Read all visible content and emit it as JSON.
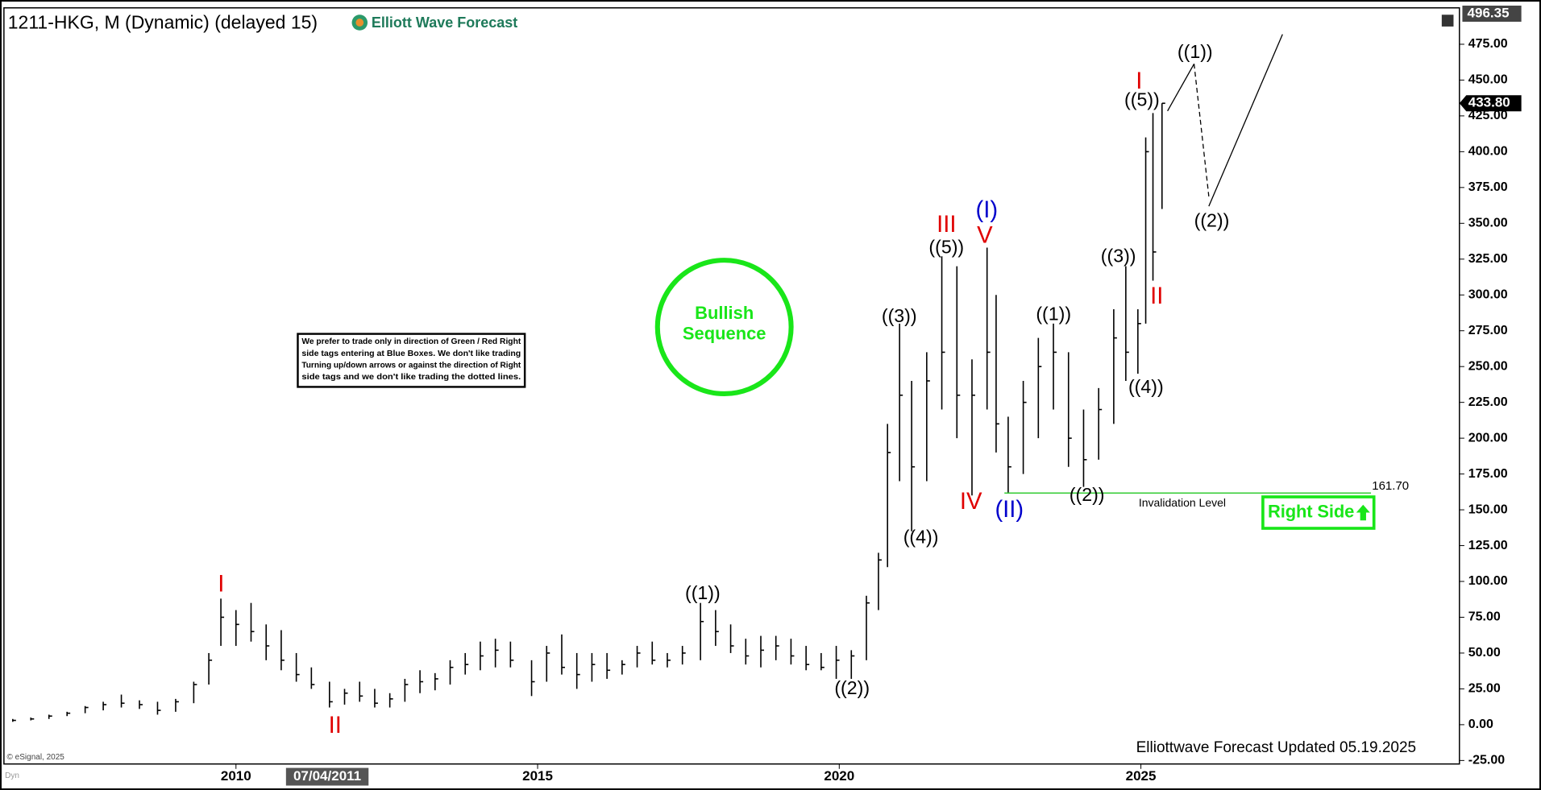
{
  "chart_data": {
    "type": "ohlc",
    "title": "1211-HKG, M (Dynamic) (delayed 15)",
    "brand": "Elliott Wave Forecast",
    "footer": "Elliottwave Forecast Updated 05.19.2025",
    "copyright": "© eSignal, 2025",
    "mode_label": "Dyn",
    "crosshair_date": "07/04/2011",
    "color": "#000000",
    "x": [
      2006.3,
      2006.6,
      2006.9,
      2007.2,
      2007.5,
      2007.8,
      2008.1,
      2008.4,
      2008.7,
      2009.0,
      2009.3,
      2009.55,
      2009.75,
      2010.0,
      2010.25,
      2010.5,
      2010.75,
      2011.0,
      2011.25,
      2011.55,
      2011.8,
      2012.05,
      2012.3,
      2012.55,
      2012.8,
      2013.05,
      2013.3,
      2013.55,
      2013.8,
      2014.05,
      2014.3,
      2014.55,
      2014.9,
      2015.15,
      2015.4,
      2015.65,
      2015.9,
      2016.15,
      2016.4,
      2016.65,
      2016.9,
      2017.15,
      2017.4,
      2017.7,
      2017.95,
      2018.2,
      2018.45,
      2018.7,
      2018.95,
      2019.2,
      2019.45,
      2019.7,
      2019.95,
      2020.2,
      2020.45,
      2020.65,
      2020.8,
      2021.0,
      2021.2,
      2021.45,
      2021.7,
      2021.95,
      2022.2,
      2022.45,
      2022.6,
      2022.8,
      2023.05,
      2023.3,
      2023.55,
      2023.8,
      2024.05,
      2024.3,
      2024.55,
      2024.75,
      2024.95,
      2025.08,
      2025.2,
      2025.35
    ],
    "high": [
      4,
      5,
      7,
      9,
      13,
      16,
      21,
      17,
      16,
      18,
      30,
      50,
      88,
      80,
      85,
      70,
      66,
      50,
      40,
      30,
      25,
      30,
      25,
      22,
      32,
      38,
      36,
      45,
      50,
      58,
      60,
      58,
      45,
      55,
      63,
      50,
      50,
      50,
      45,
      55,
      58,
      50,
      55,
      85,
      80,
      70,
      60,
      62,
      62,
      60,
      55,
      50,
      55,
      52,
      90,
      120,
      210,
      280,
      240,
      260,
      327,
      320,
      255,
      333,
      300,
      215,
      240,
      270,
      280,
      260,
      220,
      235,
      290,
      320,
      290,
      410,
      427,
      433.8
    ],
    "low": [
      2,
      3,
      4,
      6,
      8,
      10,
      12,
      11,
      7,
      9,
      15,
      28,
      55,
      55,
      58,
      45,
      38,
      30,
      25,
      12,
      14,
      16,
      12,
      12,
      16,
      22,
      24,
      28,
      35,
      38,
      40,
      40,
      20,
      30,
      35,
      25,
      30,
      32,
      35,
      40,
      42,
      40,
      42,
      45,
      55,
      50,
      42,
      40,
      45,
      42,
      38,
      38,
      32,
      32,
      45,
      80,
      110,
      170,
      135,
      170,
      220,
      200,
      160,
      220,
      190,
      161.7,
      175,
      200,
      220,
      180,
      166,
      185,
      210,
      240,
      245,
      280,
      310,
      360
    ],
    "close": [
      3,
      4,
      6,
      8,
      12,
      14,
      15,
      14,
      10,
      16,
      28,
      45,
      75,
      70,
      65,
      55,
      45,
      35,
      28,
      16,
      22,
      20,
      15,
      18,
      28,
      30,
      32,
      40,
      42,
      48,
      52,
      45,
      30,
      50,
      40,
      35,
      42,
      38,
      42,
      50,
      45,
      45,
      50,
      72,
      65,
      55,
      48,
      52,
      55,
      48,
      42,
      40,
      45,
      48,
      85,
      115,
      190,
      230,
      180,
      240,
      260,
      230,
      230,
      260,
      210,
      180,
      225,
      250,
      260,
      200,
      185,
      220,
      270,
      260,
      280,
      400,
      330,
      433.8
    ],
    "xlim": [
      2006.17,
      2030.28
    ],
    "xticks": [
      2010,
      2015,
      2020,
      2025
    ],
    "ylim": [
      -27.5,
      500
    ],
    "yticks": [
      {
        "value": -25,
        "label": "-25.00"
      },
      {
        "value": 0,
        "label": "0.00"
      },
      {
        "value": 25,
        "label": "25.00"
      },
      {
        "value": 50,
        "label": "50.00"
      },
      {
        "value": 75,
        "label": "75.00"
      },
      {
        "value": 100,
        "label": "100.00"
      },
      {
        "value": 125,
        "label": "125.00"
      },
      {
        "value": 150,
        "label": "150.00"
      },
      {
        "value": 175,
        "label": "175.00"
      },
      {
        "value": 200,
        "label": "200.00"
      },
      {
        "value": 225,
        "label": "225.00"
      },
      {
        "value": 250,
        "label": "250.00"
      },
      {
        "value": 275,
        "label": "275.00"
      },
      {
        "value": 300,
        "label": "300.00"
      },
      {
        "value": 325,
        "label": "325.00"
      },
      {
        "value": 350,
        "label": "350.00"
      },
      {
        "value": 375,
        "label": "375.00"
      },
      {
        "value": 400,
        "label": "400.00"
      },
      {
        "value": 425,
        "label": "425.00"
      },
      {
        "value": 450,
        "label": "450.00"
      },
      {
        "value": 475,
        "label": "475.00"
      }
    ],
    "top_price": {
      "value": 496.35,
      "label": "496.35"
    },
    "last_price": {
      "value": 433.8,
      "label": "433.80"
    },
    "invalidation": {
      "value": 161.7,
      "label": "161.70",
      "text": "Invalidation Level",
      "color": "#33cc33"
    },
    "sequence": {
      "lines": [
        "Bullish",
        "Sequence"
      ],
      "color": "#19e619"
    },
    "right_side": {
      "text": "Right Side",
      "color": "#19e619"
    },
    "note": [
      "We prefer to trade only in direction of Green / Red Right",
      "side tags entering at Blue Boxes. We don't like trading",
      "Turning up/down arrows or against the direction of Right",
      "side tags and we don't like trading the dotted lines."
    ],
    "annotations": [
      {
        "text": "I",
        "color": "#e00000"
      },
      {
        "text": "II",
        "color": "#e00000"
      },
      {
        "text": "((1))",
        "color": "#000000"
      },
      {
        "text": "((2))",
        "color": "#000000"
      },
      {
        "text": "((3))",
        "color": "#000000"
      },
      {
        "text": "((4))",
        "color": "#000000"
      },
      {
        "text": "((5))",
        "color": "#000000"
      },
      {
        "text": "III",
        "color": "#e00000"
      },
      {
        "text": "IV",
        "color": "#e00000"
      },
      {
        "text": "V",
        "color": "#e00000"
      },
      {
        "text": "(I)",
        "color": "#0000cc"
      },
      {
        "text": "(II)",
        "color": "#0000cc"
      },
      {
        "text": "((1))",
        "color": "#000000"
      },
      {
        "text": "((2))",
        "color": "#000000"
      },
      {
        "text": "((3))",
        "color": "#000000"
      },
      {
        "text": "((4))",
        "color": "#000000"
      },
      {
        "text": "((5))",
        "color": "#000000"
      },
      {
        "text": "I",
        "color": "#e00000"
      },
      {
        "text": "II",
        "color": "#e00000"
      },
      {
        "text": "((1))",
        "color": "#000000"
      },
      {
        "text": "((2))",
        "color": "#000000"
      }
    ]
  }
}
